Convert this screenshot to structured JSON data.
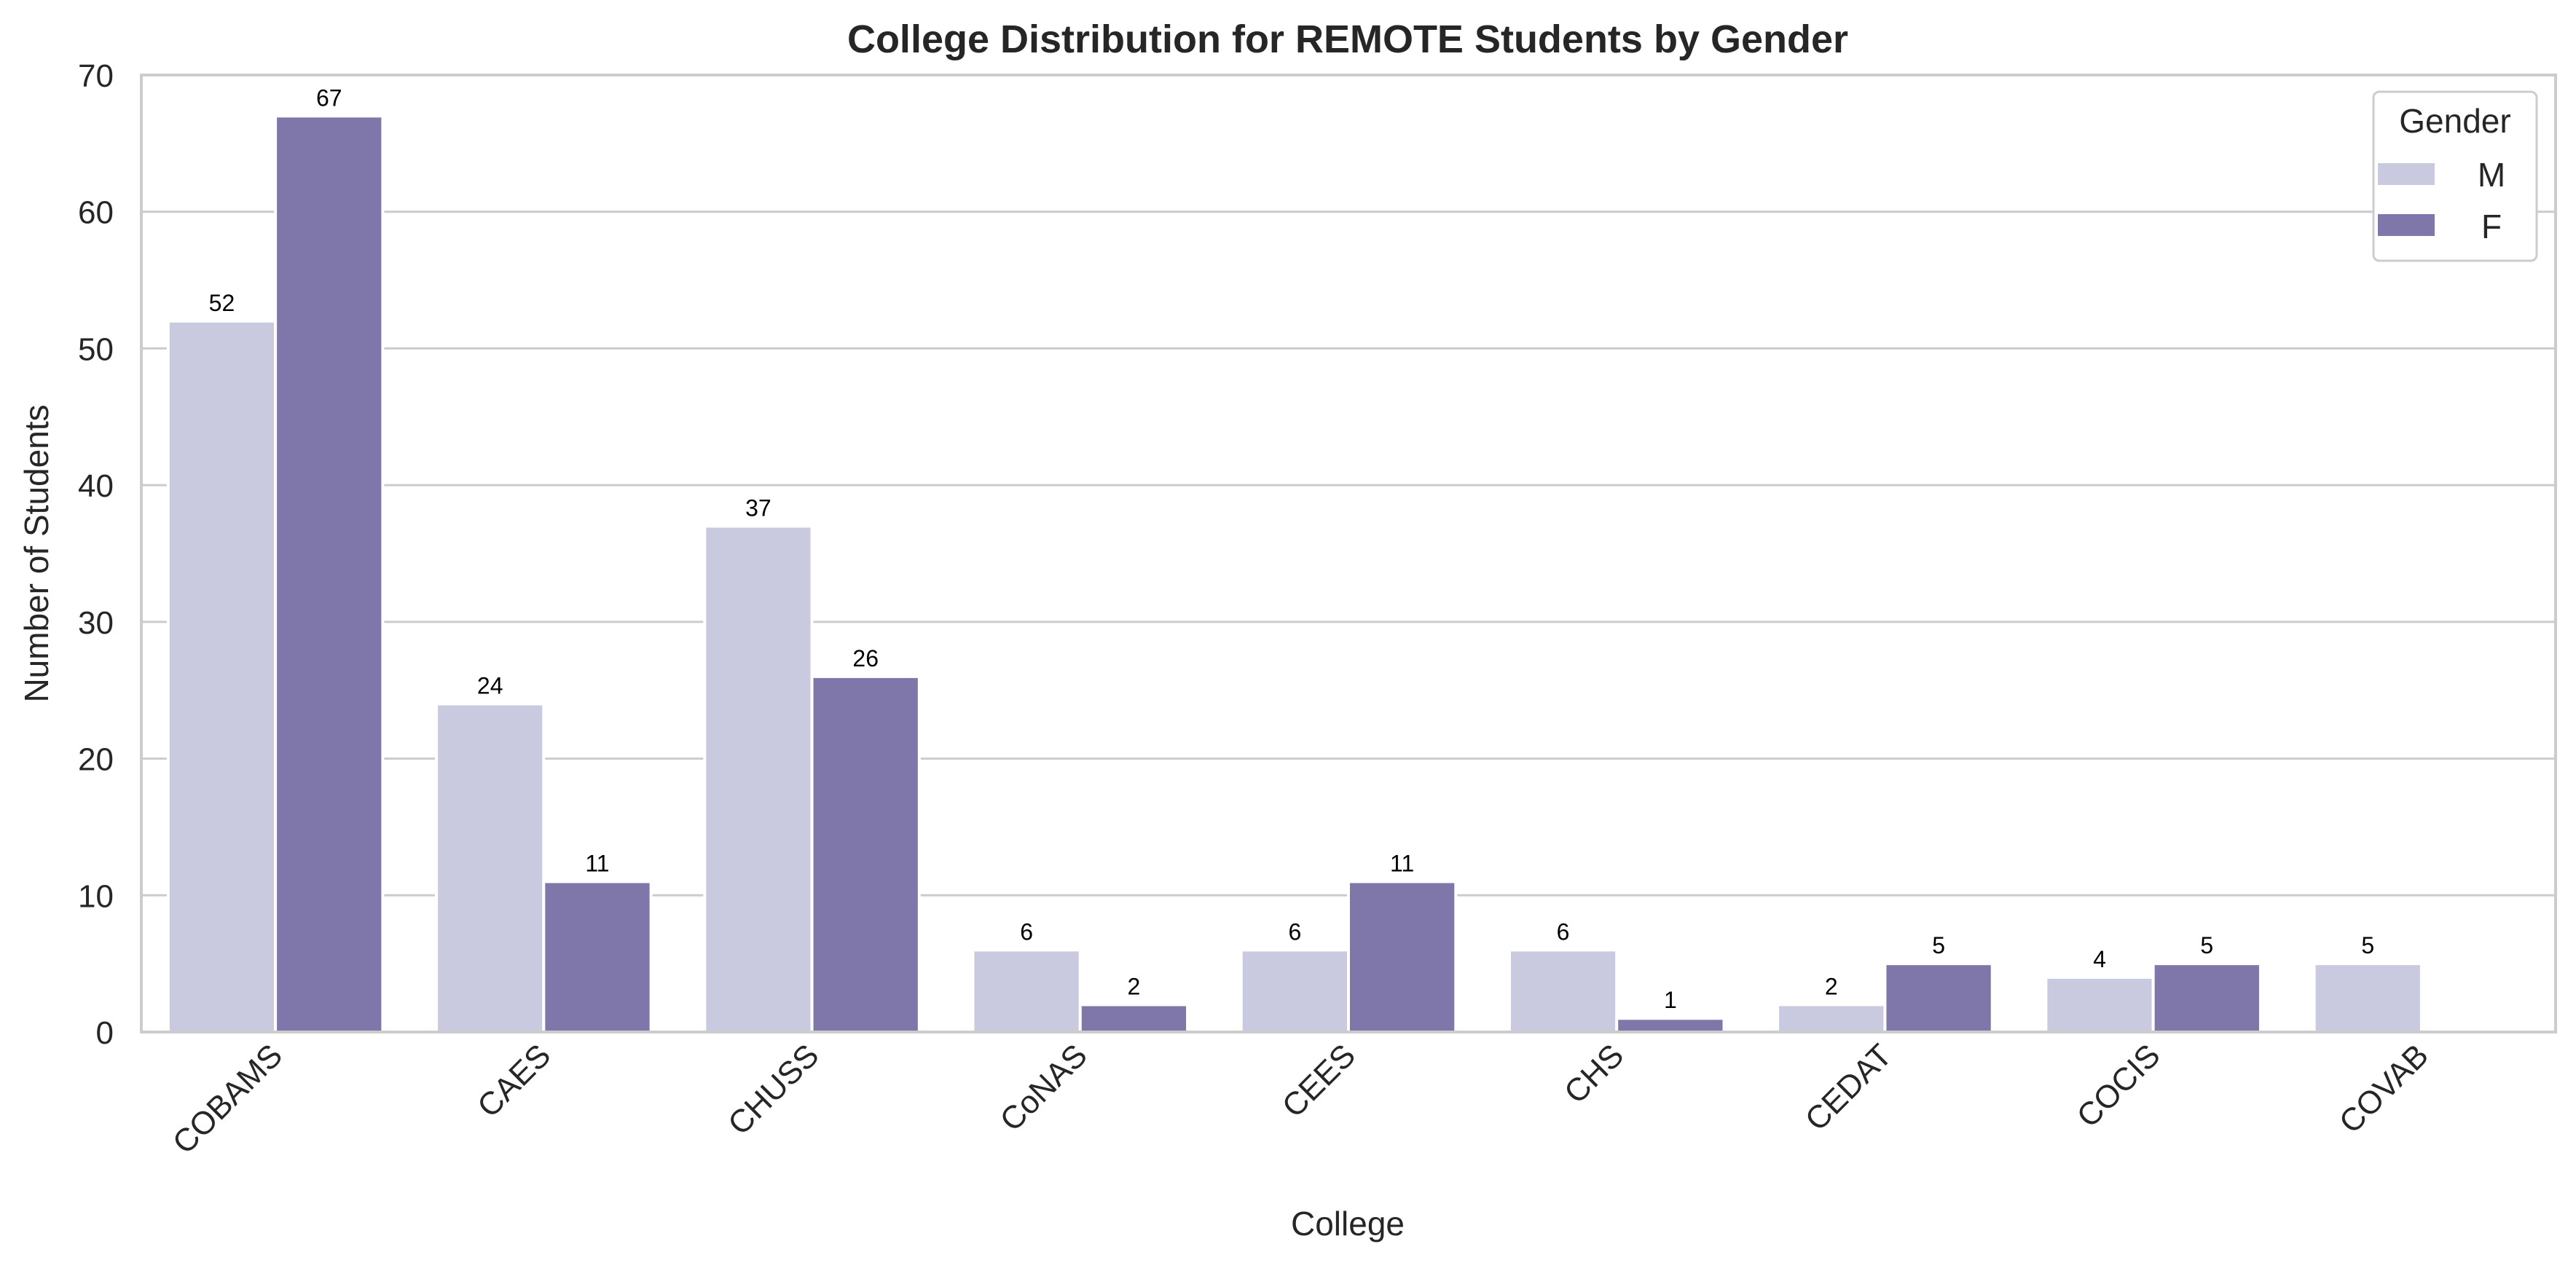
{
  "chart_data": {
    "type": "bar",
    "title": "College Distribution for REMOTE Students by Gender",
    "xlabel": "College",
    "ylabel": "Number of Students",
    "categories": [
      "COBAMS",
      "CAES",
      "CHUSS",
      "CoNAS",
      "CEES",
      "CHS",
      "CEDAT",
      "COCIS",
      "COVAB"
    ],
    "series": [
      {
        "name": "M",
        "values": [
          52,
          24,
          37,
          6,
          6,
          6,
          2,
          4,
          5
        ],
        "color": "#c9c9e0"
      },
      {
        "name": "F",
        "values": [
          67,
          11,
          26,
          2,
          11,
          1,
          5,
          5,
          0
        ],
        "color": "#7f77aa"
      }
    ],
    "data_labels": [
      [
        "52",
        "24",
        "37",
        "6",
        "6",
        "6",
        "2",
        "4",
        "5"
      ],
      [
        "67",
        "11",
        "26",
        "2",
        "11",
        "1",
        "5",
        "5",
        ""
      ]
    ],
    "ylim": [
      0,
      70
    ],
    "yticks": [
      0,
      10,
      20,
      30,
      40,
      50,
      60,
      70
    ],
    "grid": "horizontal",
    "legend": {
      "title": "Gender",
      "placement": "top-right"
    }
  }
}
